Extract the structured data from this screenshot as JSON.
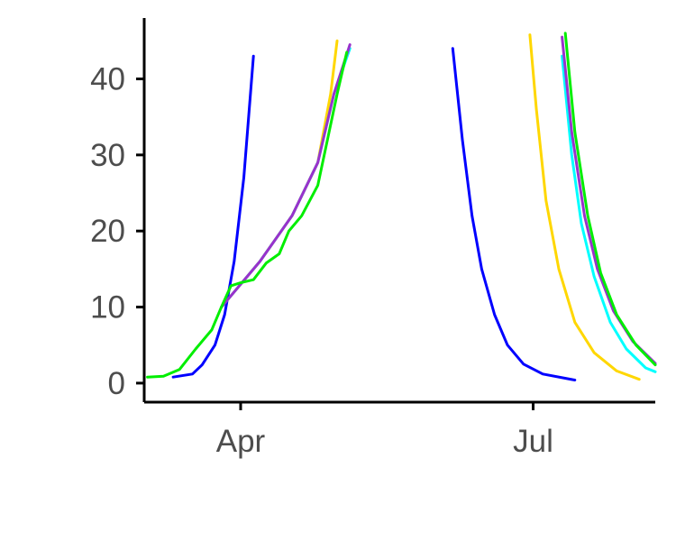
{
  "chart_data": {
    "type": "line",
    "title": "",
    "xlabel": "",
    "ylabel": "",
    "x_axis": {
      "type": "date",
      "range": [
        "2020-03-02",
        "2020-08-08"
      ],
      "ticks": [
        {
          "value": "2020-04-01",
          "label": "Apr"
        },
        {
          "value": "2020-07-01",
          "label": "Jul"
        }
      ]
    },
    "y_axis": {
      "range": [
        -2.5,
        48
      ],
      "ticks": [
        {
          "value": 0,
          "label": "0"
        },
        {
          "value": 10,
          "label": "10"
        },
        {
          "value": 20,
          "label": "20"
        },
        {
          "value": 30,
          "label": "30"
        },
        {
          "value": 40,
          "label": "40"
        }
      ]
    },
    "grid": false,
    "legend": "none",
    "series": [
      {
        "color": "#0000ff",
        "points": [
          {
            "x": "2020-03-11",
            "y": 0.8
          },
          {
            "x": "2020-03-17",
            "y": 1.2
          },
          {
            "x": "2020-03-20",
            "y": 2.4
          },
          {
            "x": "2020-03-24",
            "y": 5.0
          },
          {
            "x": "2020-03-27",
            "y": 9.0
          },
          {
            "x": "2020-03-30",
            "y": 16.0
          },
          {
            "x": "2020-04-02",
            "y": 27.0
          },
          {
            "x": "2020-04-05",
            "y": 43.0
          }
        ]
      },
      {
        "color": "#ffd700",
        "points": [
          {
            "x": "2020-03-26",
            "y": 10.0
          },
          {
            "x": "2020-04-07",
            "y": 16.0
          },
          {
            "x": "2020-04-17",
            "y": 22.0
          },
          {
            "x": "2020-04-25",
            "y": 29.0
          },
          {
            "x": "2020-04-29",
            "y": 38.0
          },
          {
            "x": "2020-05-01",
            "y": 45.0
          }
        ]
      },
      {
        "color": "#00ffff",
        "points": [
          {
            "x": "2020-03-26",
            "y": 10.0
          },
          {
            "x": "2020-04-07",
            "y": 16.0
          },
          {
            "x": "2020-04-17",
            "y": 22.0
          },
          {
            "x": "2020-04-25",
            "y": 29.0
          },
          {
            "x": "2020-04-30",
            "y": 38.0
          },
          {
            "x": "2020-05-05",
            "y": 44.0
          }
        ]
      },
      {
        "color": "#9932cc",
        "points": [
          {
            "x": "2020-03-26",
            "y": 10.0
          },
          {
            "x": "2020-04-07",
            "y": 16.0
          },
          {
            "x": "2020-04-17",
            "y": 22.0
          },
          {
            "x": "2020-04-25",
            "y": 29.0
          },
          {
            "x": "2020-04-30",
            "y": 38.0
          },
          {
            "x": "2020-05-05",
            "y": 44.5
          }
        ]
      },
      {
        "color": "#00ee00",
        "points": [
          {
            "x": "2020-03-03",
            "y": 0.8
          },
          {
            "x": "2020-03-08",
            "y": 0.9
          },
          {
            "x": "2020-03-13",
            "y": 1.8
          },
          {
            "x": "2020-03-18",
            "y": 4.5
          },
          {
            "x": "2020-03-23",
            "y": 7.0
          },
          {
            "x": "2020-03-26",
            "y": 10.0
          },
          {
            "x": "2020-03-29",
            "y": 12.8
          },
          {
            "x": "2020-04-01",
            "y": 13.2
          },
          {
            "x": "2020-04-05",
            "y": 13.6
          },
          {
            "x": "2020-04-09",
            "y": 15.8
          },
          {
            "x": "2020-04-13",
            "y": 17.0
          },
          {
            "x": "2020-04-16",
            "y": 20.0
          },
          {
            "x": "2020-04-20",
            "y": 22.0
          },
          {
            "x": "2020-04-25",
            "y": 26.0
          },
          {
            "x": "2020-04-28",
            "y": 32.0
          },
          {
            "x": "2020-05-01",
            "y": 38.0
          },
          {
            "x": "2020-05-04",
            "y": 43.5
          }
        ]
      },
      {
        "color": "#0000ff",
        "points": [
          {
            "x": "2020-06-06",
            "y": 44.0
          },
          {
            "x": "2020-06-09",
            "y": 32.0
          },
          {
            "x": "2020-06-12",
            "y": 22.0
          },
          {
            "x": "2020-06-15",
            "y": 15.0
          },
          {
            "x": "2020-06-19",
            "y": 9.0
          },
          {
            "x": "2020-06-23",
            "y": 5.0
          },
          {
            "x": "2020-06-28",
            "y": 2.5
          },
          {
            "x": "2020-07-04",
            "y": 1.2
          },
          {
            "x": "2020-07-14",
            "y": 0.4
          }
        ]
      },
      {
        "color": "#ffd700",
        "points": [
          {
            "x": "2020-06-30",
            "y": 45.8
          },
          {
            "x": "2020-07-02",
            "y": 36.0
          },
          {
            "x": "2020-07-05",
            "y": 24.0
          },
          {
            "x": "2020-07-09",
            "y": 15.0
          },
          {
            "x": "2020-07-14",
            "y": 8.0
          },
          {
            "x": "2020-07-20",
            "y": 4.0
          },
          {
            "x": "2020-07-27",
            "y": 1.6
          },
          {
            "x": "2020-08-03",
            "y": 0.5
          }
        ]
      },
      {
        "color": "#00ffff",
        "points": [
          {
            "x": "2020-07-10",
            "y": 43.0
          },
          {
            "x": "2020-07-13",
            "y": 30.0
          },
          {
            "x": "2020-07-16",
            "y": 21.0
          },
          {
            "x": "2020-07-20",
            "y": 14.0
          },
          {
            "x": "2020-07-25",
            "y": 8.0
          },
          {
            "x": "2020-07-30",
            "y": 4.5
          },
          {
            "x": "2020-08-05",
            "y": 2.0
          },
          {
            "x": "2020-08-08",
            "y": 1.5
          }
        ]
      },
      {
        "color": "#9932cc",
        "points": [
          {
            "x": "2020-07-10",
            "y": 45.5
          },
          {
            "x": "2020-07-13",
            "y": 33.0
          },
          {
            "x": "2020-07-17",
            "y": 22.0
          },
          {
            "x": "2020-07-21",
            "y": 15.0
          },
          {
            "x": "2020-07-26",
            "y": 9.5
          },
          {
            "x": "2020-08-01",
            "y": 5.5
          },
          {
            "x": "2020-08-08",
            "y": 2.6
          }
        ]
      },
      {
        "color": "#00ee00",
        "points": [
          {
            "x": "2020-07-11",
            "y": 46.0
          },
          {
            "x": "2020-07-14",
            "y": 33.0
          },
          {
            "x": "2020-07-18",
            "y": 22.0
          },
          {
            "x": "2020-07-22",
            "y": 14.5
          },
          {
            "x": "2020-07-27",
            "y": 9.0
          },
          {
            "x": "2020-08-02",
            "y": 5.0
          },
          {
            "x": "2020-08-08",
            "y": 2.4
          }
        ]
      }
    ]
  }
}
